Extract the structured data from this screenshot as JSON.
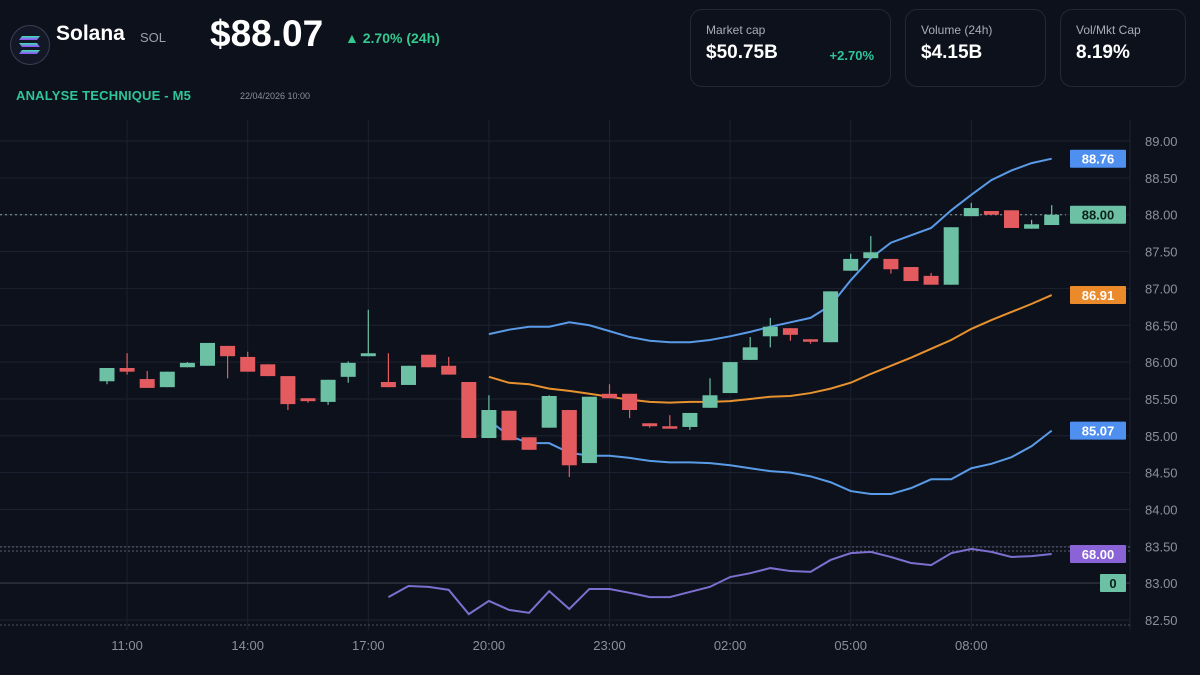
{
  "header": {
    "coin_name": "Solana",
    "coin_symbol": "SOL",
    "price": "$88.07",
    "change": "▲ 2.70% (24h)",
    "section_title": "ANALYSE TECHNIQUE - M5",
    "timestamp": "22/04/2026 10:00"
  },
  "stats": {
    "market_cap": {
      "label": "Market cap",
      "value": "$50.75B",
      "change": "+2.70%"
    },
    "volume": {
      "label": "Volume (24h)",
      "value": "$4.15B"
    },
    "ratio": {
      "label": "Vol/Mkt Cap",
      "value": "8.19%"
    }
  },
  "colors": {
    "up": "#6cc1a5",
    "down": "#e35b5e",
    "bb_outer": "#5a9be8",
    "bb_mid": "#e7922f",
    "oscillator": "#7d6fd0",
    "accent_green": "#2fc59a"
  },
  "chart_data": {
    "type": "candlestick",
    "x_ticks": [
      "11:00",
      "14:00",
      "17:00",
      "20:00",
      "23:00",
      "02:00",
      "05:00",
      "08:00"
    ],
    "y_ticks": [
      "89.00",
      "88.50",
      "88.00",
      "87.50",
      "87.00",
      "86.50",
      "86.00",
      "85.50",
      "85.00",
      "84.50",
      "84.00",
      "83.50",
      "83.00",
      "82.50"
    ],
    "ylim": [
      82.5,
      89.0
    ],
    "grid": true,
    "candles_ohlc": [
      [
        85.74,
        85.92,
        85.7,
        85.92
      ],
      [
        85.92,
        86.12,
        85.83,
        85.87
      ],
      [
        85.77,
        85.88,
        85.65,
        85.65
      ],
      [
        85.66,
        85.87,
        85.66,
        85.87
      ],
      [
        85.93,
        86.0,
        85.93,
        85.99
      ],
      [
        85.95,
        86.26,
        85.95,
        86.26
      ],
      [
        86.22,
        86.22,
        85.78,
        86.08
      ],
      [
        86.07,
        86.14,
        85.87,
        85.87
      ],
      [
        85.97,
        85.97,
        85.81,
        85.81
      ],
      [
        85.81,
        85.81,
        85.35,
        85.43
      ],
      [
        85.51,
        85.51,
        85.45,
        85.47
      ],
      [
        85.46,
        85.76,
        85.42,
        85.76
      ],
      [
        85.8,
        86.01,
        85.72,
        85.99
      ],
      [
        86.08,
        86.71,
        86.08,
        86.12
      ],
      [
        85.73,
        86.12,
        85.66,
        85.66
      ],
      [
        85.69,
        85.95,
        85.69,
        85.95
      ],
      [
        86.1,
        86.1,
        85.93,
        85.93
      ],
      [
        85.95,
        86.07,
        85.83,
        85.83
      ],
      [
        85.73,
        85.73,
        84.97,
        84.97
      ],
      [
        84.97,
        85.55,
        84.97,
        85.35
      ],
      [
        85.34,
        85.34,
        84.94,
        84.94
      ],
      [
        84.98,
        84.98,
        84.81,
        84.81
      ],
      [
        85.11,
        85.55,
        85.11,
        85.54
      ],
      [
        85.35,
        85.35,
        84.44,
        84.6
      ],
      [
        84.63,
        85.53,
        84.63,
        85.53
      ],
      [
        85.57,
        85.7,
        85.51,
        85.51
      ],
      [
        85.57,
        85.57,
        85.24,
        85.35
      ],
      [
        85.17,
        85.17,
        85.11,
        85.13
      ],
      [
        85.13,
        85.28,
        85.11,
        85.11
      ],
      [
        85.12,
        85.31,
        85.08,
        85.31
      ],
      [
        85.38,
        85.78,
        85.38,
        85.55
      ],
      [
        85.58,
        86.0,
        85.58,
        86.0
      ],
      [
        86.03,
        86.34,
        86.03,
        86.2
      ],
      [
        86.35,
        86.6,
        86.2,
        86.48
      ],
      [
        86.46,
        86.46,
        86.29,
        86.37
      ],
      [
        86.31,
        86.31,
        86.25,
        86.29
      ],
      [
        86.27,
        86.96,
        86.27,
        86.96
      ],
      [
        87.24,
        87.47,
        87.24,
        87.4
      ],
      [
        87.41,
        87.71,
        87.41,
        87.49
      ],
      [
        87.4,
        87.4,
        87.2,
        87.26
      ],
      [
        87.29,
        87.29,
        87.1,
        87.1
      ],
      [
        87.17,
        87.21,
        87.05,
        87.05
      ],
      [
        87.05,
        87.83,
        87.05,
        87.83
      ],
      [
        87.98,
        88.16,
        87.98,
        88.09
      ],
      [
        88.05,
        88.05,
        88.0,
        88.0
      ],
      [
        88.06,
        88.06,
        87.82,
        87.82
      ],
      [
        87.81,
        87.93,
        87.81,
        87.87
      ],
      [
        87.86,
        88.13,
        87.86,
        88.0
      ]
    ],
    "bollinger_start_index": 19,
    "bollinger_upper": [
      86.38,
      86.44,
      86.48,
      86.48,
      86.54,
      86.5,
      86.42,
      86.34,
      86.29,
      86.27,
      86.27,
      86.3,
      86.35,
      86.41,
      86.48,
      86.54,
      86.6,
      86.77,
      87.11,
      87.41,
      87.62,
      87.72,
      87.82,
      88.06,
      88.27,
      88.47,
      88.6,
      88.7,
      88.76
    ],
    "bollinger_middle": [
      85.8,
      85.72,
      85.7,
      85.64,
      85.61,
      85.57,
      85.53,
      85.49,
      85.46,
      85.45,
      85.46,
      85.46,
      85.47,
      85.5,
      85.53,
      85.54,
      85.58,
      85.64,
      85.72,
      85.84,
      85.95,
      86.06,
      86.18,
      86.3,
      86.45,
      86.57,
      86.68,
      86.79,
      86.91
    ],
    "bollinger_lower": [
      85.21,
      85.0,
      84.9,
      84.9,
      84.77,
      84.73,
      84.73,
      84.7,
      84.66,
      84.64,
      84.64,
      84.63,
      84.6,
      84.56,
      84.52,
      84.5,
      84.45,
      84.37,
      84.25,
      84.21,
      84.21,
      84.29,
      84.41,
      84.41,
      84.56,
      84.62,
      84.71,
      84.86,
      85.07
    ],
    "oscillator_start_index": 14,
    "oscillator": [
      -33,
      -7,
      -9,
      -16,
      -73,
      -42,
      -63,
      -70,
      -19,
      -61,
      -14,
      -14,
      -23,
      -33,
      -33,
      -21,
      -9,
      14,
      23,
      35,
      28,
      26,
      54,
      70,
      73,
      61,
      47,
      42,
      70,
      80,
      73,
      61,
      63,
      68
    ],
    "last_price_line": 88.0,
    "price_labels": {
      "bb_upper": "88.76",
      "last": "88.00",
      "bb_middle": "86.91",
      "bb_lower": "85.07",
      "oscillator": "68.00",
      "zero": "0"
    }
  }
}
